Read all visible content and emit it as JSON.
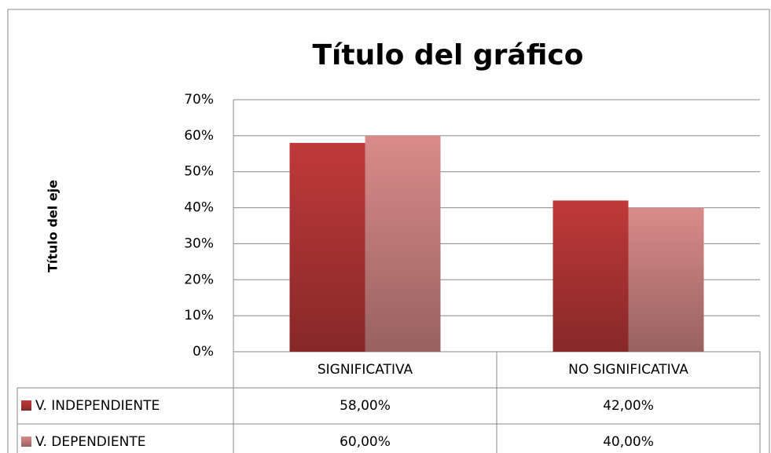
{
  "chart_data": {
    "type": "bar",
    "title": "Título del gráfico",
    "y_label": "Título del eje",
    "categories": [
      "SIGNIFICATIVA",
      "NO SIGNIFICATIVA"
    ],
    "series": [
      {
        "name": "V. INDEPENDIENTE",
        "color": "#c0393a",
        "values": [
          58,
          42
        ],
        "value_labels": [
          "58,00%",
          "42,00%"
        ]
      },
      {
        "name": "V. DEPENDIENTE",
        "color": "#d98b8a",
        "values": [
          60,
          40
        ],
        "value_labels": [
          "60,00%",
          "40,00%"
        ]
      }
    ],
    "ylim": [
      0,
      70
    ],
    "yticks": [
      {
        "value": 0,
        "label": "0%"
      },
      {
        "value": 10,
        "label": "10%"
      },
      {
        "value": 20,
        "label": "20%"
      },
      {
        "value": 30,
        "label": "30%"
      },
      {
        "value": 40,
        "label": "40%"
      },
      {
        "value": 50,
        "label": "50%"
      },
      {
        "value": 60,
        "label": "60%"
      },
      {
        "value": 70,
        "label": "70%"
      }
    ],
    "grid": true,
    "data_table": true
  }
}
